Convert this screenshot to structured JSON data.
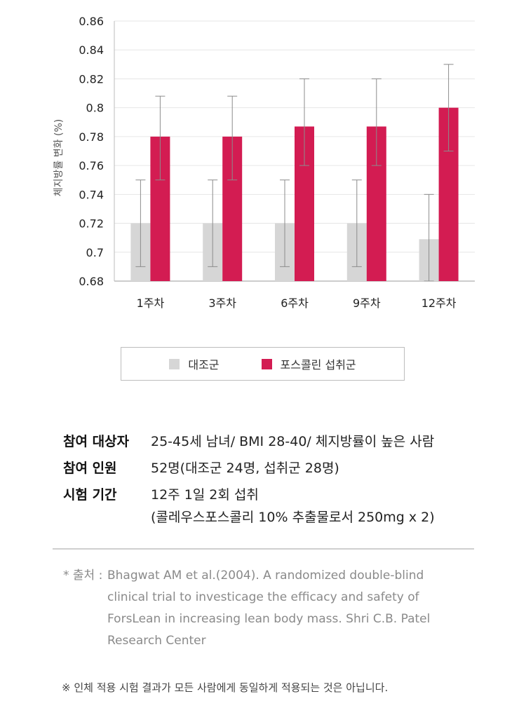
{
  "chart_data": {
    "type": "bar",
    "ylabel": "체지방률 변화 (%)",
    "ylim": [
      0.68,
      0.86
    ],
    "yticks": [
      "0.86",
      "0.84",
      "0.82",
      "0.8",
      "0.78",
      "0.76",
      "0.74",
      "0.72",
      "0.7",
      "0.68"
    ],
    "grid": true,
    "categories": [
      "1주차",
      "3주차",
      "6주차",
      "9주차",
      "12주차"
    ],
    "series": [
      {
        "name": "대조군",
        "color": "#d6d6d6",
        "values": [
          0.72,
          0.72,
          0.72,
          0.72,
          0.709
        ],
        "error_low": [
          0.69,
          0.69,
          0.69,
          0.69,
          0.68
        ],
        "error_high": [
          0.75,
          0.75,
          0.75,
          0.75,
          0.74
        ]
      },
      {
        "name": "포스콜린 섭취군",
        "color": "#d31c52",
        "values": [
          0.78,
          0.78,
          0.787,
          0.787,
          0.8
        ],
        "error_low": [
          0.75,
          0.75,
          0.76,
          0.76,
          0.77
        ],
        "error_high": [
          0.808,
          0.808,
          0.82,
          0.82,
          0.83
        ]
      }
    ],
    "legend_position": "bottom"
  },
  "info": {
    "target_label": "참여 대상자",
    "target_value": "25-45세 남녀/ BMI 28-40/ 체지방률이 높은 사람",
    "participants_label": "참여 인원",
    "participants_value": "52명(대조군 24명, 섭취군 28명)",
    "period_label": "시험 기간",
    "period_value": "12주 1일 2회 섭취",
    "period_sub": "(콜레우스포스콜리 10% 추출물로서 250mg x 2)"
  },
  "source": {
    "label": "* 출처 :",
    "text": "Bhagwat AM et al.(2004). A randomized double-blind clinical trial to investicage the efficacy and safety of ForsLean in increasing lean body mass. Shri C.B. Patel Research Center"
  },
  "disclaimer": "※ 인체 적용 시험 결과가 모든 사람에게 동일하게 적용되는 것은 아닙니다."
}
